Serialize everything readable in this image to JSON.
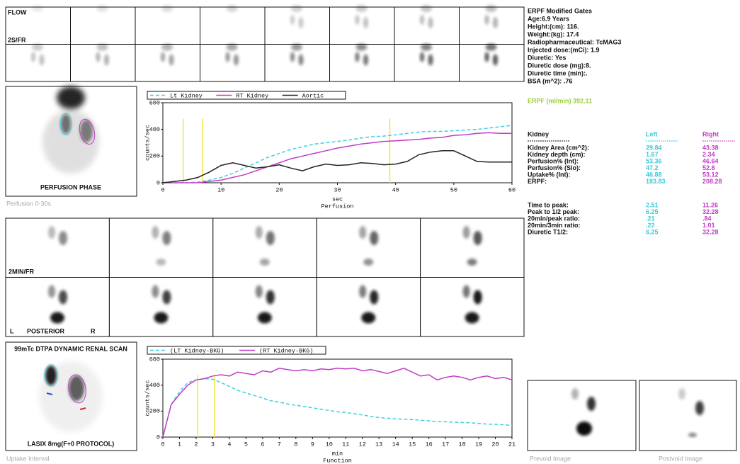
{
  "flow": {
    "title": "FLOW",
    "rate": "2S/FR"
  },
  "patient_info": [
    "ERPF Modified Gates",
    "Age:6.9 Years",
    "Height:(cm): 116.",
    "Weight:(kg): 17.4",
    "Radiopharmaceutical: TcMAG3",
    "Injected dose:(mCi): 1.9",
    "Diuretic: Yes",
    "Diuretic dose (mg):8.",
    "Diuretic time (min):.",
    "BSA (m^2): .76"
  ],
  "erpf": "ERPF (ml/min) 392.11",
  "results": {
    "header": [
      "Kidney",
      "Left",
      "Right"
    ],
    "rows": [
      [
        "Kidney Area (cm^2):",
        "29.84",
        "43.38"
      ],
      [
        "Kidney depth (cm):",
        "1.67",
        "2.34"
      ],
      [
        "Perfusion% (Int):",
        "53.36",
        "46.64"
      ],
      [
        "Perfusion% (Slo):",
        "47.2",
        "52.8"
      ],
      [
        "Uptake% (Int):",
        "46.88",
        "53.12"
      ],
      [
        "ERPF:",
        "183.83",
        "208.28"
      ]
    ],
    "timing_rows": [
      [
        "Time to peak:",
        "2.51",
        "11.26"
      ],
      [
        "Peak to 1/2 peak:",
        "6.25",
        "32.28"
      ],
      [
        "20min/peak ratio:",
        ".21",
        ".84"
      ],
      [
        "20min/3min ratio:",
        ".22",
        "1.01"
      ],
      [
        "Diuretic T1/2:",
        "6.25",
        "32.28"
      ]
    ]
  },
  "perfusion_image": {
    "label": "PERFUSION PHASE",
    "caption": "Perfusion 0-30s"
  },
  "dynamic_frames": {
    "rate": "2MIN/FR",
    "left": "L",
    "view": "POSTERIOR",
    "right": "R"
  },
  "uptake_image": {
    "title": "99mTc DTPA DYNAMIC RENAL SCAN",
    "label": "LASIX 8mg(F+0 PROTOCOL)",
    "caption": "Uptake Interval"
  },
  "prevoid_caption": "Prevoid Image",
  "postvoid_caption": "Postvoid Image",
  "chart_data": [
    {
      "type": "line",
      "title": "Perfusion",
      "xlabel": "sec",
      "ylabel": "counts/sec",
      "x": [
        0,
        2,
        4,
        6,
        8,
        10,
        12,
        14,
        16,
        18,
        20,
        22,
        24,
        26,
        28,
        30,
        32,
        34,
        36,
        38,
        40,
        42,
        44,
        46,
        48,
        50,
        52,
        54,
        56,
        58,
        60
      ],
      "xlim": [
        0,
        60
      ],
      "xticks": [
        0,
        10,
        20,
        30,
        40,
        50,
        60
      ],
      "ylim": [
        0,
        600
      ],
      "yticks": [
        0,
        200,
        400,
        600
      ],
      "markers": [
        3.5,
        6.8,
        39
      ],
      "marker_color": "#f2e64a",
      "series": [
        {
          "name": "Lt Kidney",
          "color": "#3fcfe0",
          "dash": true,
          "values": [
            0,
            0,
            0,
            5,
            20,
            40,
            70,
            110,
            150,
            190,
            220,
            250,
            270,
            290,
            300,
            310,
            320,
            335,
            345,
            350,
            360,
            370,
            380,
            385,
            385,
            390,
            395,
            400,
            410,
            420,
            430
          ]
        },
        {
          "name": "RT Kidney",
          "color": "#c23cc4",
          "dash": false,
          "values": [
            0,
            0,
            0,
            0,
            10,
            20,
            40,
            60,
            90,
            120,
            150,
            180,
            200,
            220,
            240,
            260,
            275,
            290,
            300,
            310,
            315,
            320,
            325,
            335,
            340,
            355,
            360,
            370,
            375,
            370,
            370
          ]
        },
        {
          "name": "Aortic",
          "color": "#222222",
          "dash": false,
          "values": [
            0,
            10,
            20,
            40,
            80,
            130,
            150,
            130,
            110,
            120,
            135,
            110,
            90,
            120,
            140,
            130,
            135,
            150,
            145,
            135,
            140,
            160,
            210,
            230,
            240,
            240,
            200,
            160,
            155,
            155,
            155
          ]
        }
      ]
    },
    {
      "type": "line",
      "title": "Function",
      "xlabel": "min",
      "ylabel": "counts/sec",
      "x": [
        0,
        0.5,
        1,
        1.5,
        2,
        2.5,
        3,
        3.5,
        4,
        4.5,
        5,
        5.5,
        6,
        6.5,
        7,
        7.5,
        8,
        8.5,
        9,
        9.5,
        10,
        10.5,
        11,
        11.5,
        12,
        12.5,
        13,
        13.5,
        14,
        14.5,
        15,
        15.5,
        16,
        16.5,
        17,
        17.5,
        18,
        18.5,
        19,
        19.5,
        20,
        20.5,
        21
      ],
      "xlim": [
        0,
        21
      ],
      "xticks": [
        0,
        1,
        2,
        3,
        4,
        5,
        6,
        7,
        8,
        9,
        10,
        11,
        12,
        13,
        14,
        15,
        16,
        17,
        18,
        19,
        20,
        21
      ],
      "ylim": [
        0,
        600
      ],
      "yticks": [
        0,
        200,
        400,
        600
      ],
      "markers": [
        2.1,
        3.1
      ],
      "marker_color": "#f2e64a",
      "series": [
        {
          "name": "(LT Kidney-BKG)",
          "color": "#3fcfe0",
          "dash": true,
          "values": [
            0,
            250,
            350,
            420,
            440,
            450,
            445,
            420,
            390,
            360,
            340,
            320,
            300,
            280,
            270,
            255,
            245,
            235,
            225,
            215,
            205,
            195,
            190,
            180,
            170,
            160,
            150,
            145,
            140,
            138,
            135,
            130,
            125,
            120,
            118,
            115,
            112,
            110,
            105,
            100,
            98,
            95,
            90
          ]
        },
        {
          "name": "(RT Kidney-BKG)",
          "color": "#c23cc4",
          "dash": false,
          "values": [
            0,
            250,
            330,
            400,
            440,
            450,
            470,
            480,
            470,
            500,
            490,
            480,
            510,
            500,
            530,
            520,
            510,
            520,
            510,
            525,
            520,
            530,
            525,
            530,
            510,
            520,
            505,
            490,
            510,
            530,
            500,
            470,
            480,
            440,
            460,
            470,
            460,
            440,
            460,
            470,
            450,
            460,
            440
          ]
        }
      ]
    }
  ]
}
